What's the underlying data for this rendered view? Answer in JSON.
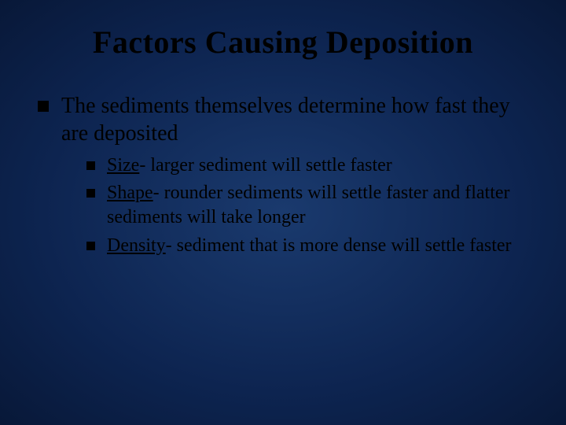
{
  "slide": {
    "title": "Factors Causing Deposition",
    "background_gradient": [
      "#1a3a6e",
      "#0d2450",
      "#081838"
    ],
    "title_color": "#000000",
    "title_fontsize": 40,
    "body_fontsize": 28,
    "sub_fontsize": 24,
    "bullet_shape": "square",
    "bullet_color": "#000000",
    "font_family": "Times New Roman",
    "body": {
      "text": "The sediments themselves determine  how fast they are deposited",
      "sub": [
        {
          "term": "Size",
          "desc": "- larger sediment will settle faster"
        },
        {
          "term": "Shape",
          "desc": "- rounder sediments will settle faster and flatter sediments will take longer"
        },
        {
          "term": "Density",
          "desc": "- sediment that is more dense will settle faster"
        }
      ]
    }
  }
}
